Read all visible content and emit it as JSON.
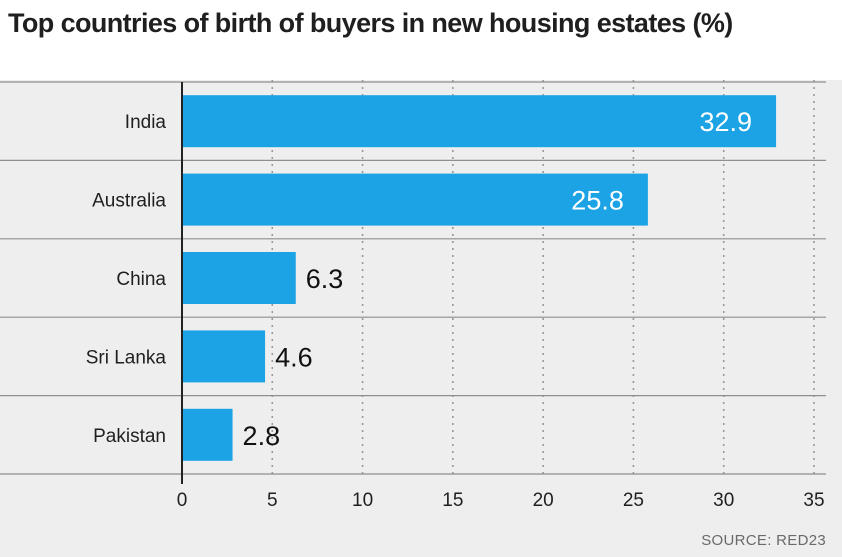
{
  "chart_data": {
    "type": "bar",
    "orientation": "horizontal",
    "title": "Top countries of birth of buyers in new housing estates (%)",
    "categories": [
      "India",
      "Australia",
      "China",
      "Sri Lanka",
      "Pakistan"
    ],
    "values": [
      32.9,
      25.8,
      6.3,
      4.6,
      2.8
    ],
    "value_labels": [
      "32.9",
      "25.8",
      "6.3",
      "4.6",
      "2.8"
    ],
    "x_ticks": [
      "0",
      "5",
      "10",
      "15",
      "20",
      "25",
      "30",
      "35"
    ],
    "xlim": [
      0,
      35
    ],
    "xlabel": "",
    "ylabel": "",
    "grid": true,
    "source": "SOURCE: RED23",
    "colors": {
      "bar": "#1ba3e6",
      "panel": "#eeeeee",
      "grid": "#9a9a9a",
      "separator": "#8f8f8f"
    }
  }
}
